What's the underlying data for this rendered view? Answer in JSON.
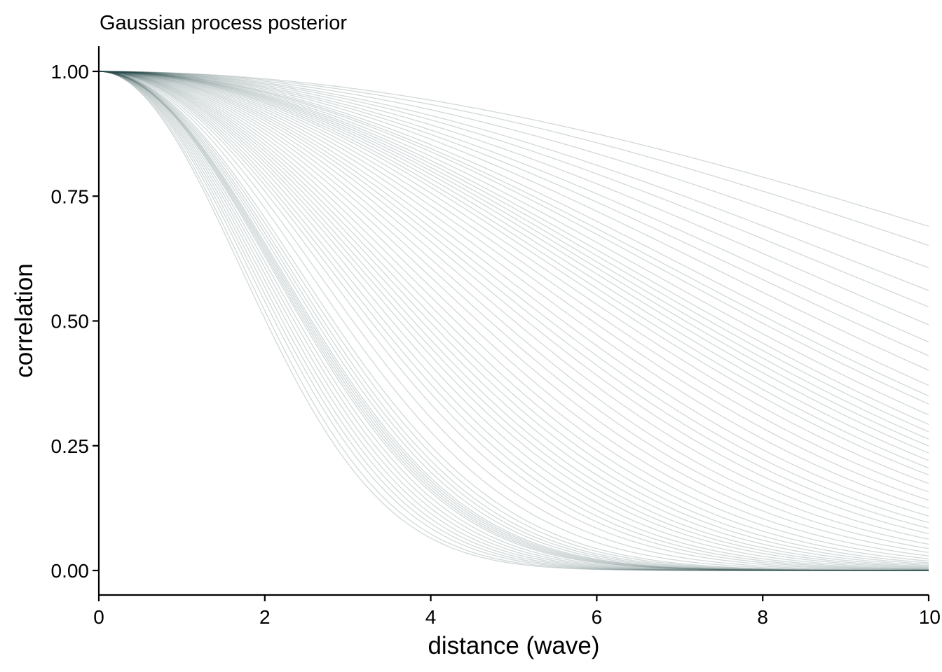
{
  "chart_data": {
    "type": "line",
    "title": "Gaussian process posterior",
    "xlabel": "distance (wave)",
    "ylabel": "correlation",
    "xlim": [
      0,
      10
    ],
    "ylim": [
      -0.046,
      1.05
    ],
    "x_ticks": [
      0,
      2,
      4,
      6,
      8,
      10
    ],
    "x_tick_labels": [
      "0",
      "2",
      "4",
      "6",
      "8",
      "10"
    ],
    "y_ticks": [
      0,
      0.25,
      0.5,
      0.75,
      1
    ],
    "y_tick_labels": [
      "0.00",
      "0.25",
      "0.50",
      "0.75",
      "1.00"
    ],
    "grid": false,
    "legend": "none",
    "line_color": "#2f4f4f",
    "line_opacity": 0.22,
    "function": "exp(-d^2 / (2 * l^2))",
    "x_values": [
      0,
      0.5,
      1,
      1.5,
      2,
      2.5,
      3,
      3.5,
      4,
      4.5,
      5,
      5.5,
      6,
      6.5,
      7,
      7.5,
      8,
      8.5,
      9,
      9.5,
      10
    ],
    "series_length_scales": [
      1.71,
      1.75,
      1.8,
      1.84,
      1.88,
      1.92,
      1.96,
      2.0,
      2.04,
      2.08,
      2.1,
      2.12,
      2.14,
      2.16,
      2.18,
      2.22,
      2.26,
      2.3,
      2.35,
      2.4,
      2.5,
      2.6,
      2.7,
      2.78,
      2.85,
      2.92,
      3.0,
      3.08,
      3.15,
      3.22,
      3.3,
      3.38,
      3.46,
      3.55,
      3.65,
      3.76,
      3.88,
      4.0,
      4.12,
      4.25,
      4.38,
      4.5,
      4.62,
      4.75,
      4.9,
      5.05,
      5.2,
      5.35,
      5.5,
      5.62,
      5.75,
      5.88,
      6.0,
      6.12,
      6.25,
      6.38,
      6.55,
      6.75,
      6.9,
      7.1,
      7.4,
      7.7,
      8.0,
      8.4,
      8.85,
      9.3,
      10.0,
      10.8,
      11.6
    ]
  }
}
